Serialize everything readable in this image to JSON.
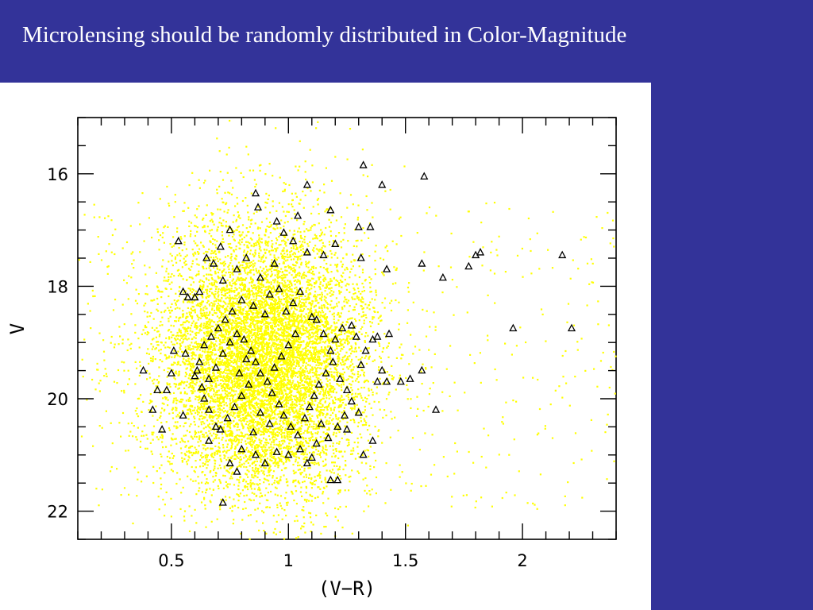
{
  "slide": {
    "title": "Microlensing should be randomly distributed in Color-Magnitude"
  },
  "colors": {
    "background": "#333399",
    "title_text": "#ffffff",
    "panel": "#ffffff",
    "field_stars": "#ffff00",
    "events": "#000000"
  },
  "chart_data": {
    "type": "scatter",
    "title": "",
    "xlabel": "(V−R)",
    "ylabel": "V",
    "xlim": [
      0.1,
      2.4
    ],
    "ylim": [
      22.5,
      15.0
    ],
    "y_inverted": true,
    "grid": false,
    "legend": "none",
    "x_ticks": [
      {
        "value": 0.5,
        "label": "0.5"
      },
      {
        "value": 1.0,
        "label": "1"
      },
      {
        "value": 1.5,
        "label": "1.5"
      },
      {
        "value": 2.0,
        "label": "2"
      }
    ],
    "y_ticks": [
      {
        "value": 16,
        "label": "16"
      },
      {
        "value": 18,
        "label": "18"
      },
      {
        "value": 20,
        "label": "20"
      },
      {
        "value": 22,
        "label": "22"
      }
    ],
    "series": [
      {
        "marker": "dot",
        "color": "#ffff00",
        "distribution": {
          "type": "gaussian",
          "count": 9000,
          "x_mean": 0.9,
          "x_std": 0.22,
          "y_mean": 19.3,
          "y_std": 1.2,
          "x_range": [
            0.1,
            2.4
          ],
          "y_range": [
            15.0,
            22.5
          ]
        },
        "extra_sparse_count": 500
      },
      {
        "marker": "triangle",
        "color": "#000000",
        "points": [
          [
            0.53,
            17.2
          ],
          [
            0.57,
            18.2
          ],
          [
            0.6,
            18.2
          ],
          [
            0.62,
            18.1
          ],
          [
            0.55,
            18.1
          ],
          [
            0.65,
            17.5
          ],
          [
            0.68,
            17.6
          ],
          [
            0.71,
            17.3
          ],
          [
            0.75,
            17.0
          ],
          [
            0.72,
            17.9
          ],
          [
            0.86,
            16.35
          ],
          [
            0.87,
            16.6
          ],
          [
            0.95,
            16.85
          ],
          [
            1.04,
            16.75
          ],
          [
            1.08,
            16.2
          ],
          [
            1.18,
            16.65
          ],
          [
            1.32,
            15.85
          ],
          [
            1.4,
            16.2
          ],
          [
            1.58,
            16.05
          ],
          [
            1.3,
            16.95
          ],
          [
            1.35,
            16.95
          ],
          [
            1.2,
            17.25
          ],
          [
            1.15,
            17.45
          ],
          [
            1.08,
            17.4
          ],
          [
            1.02,
            17.2
          ],
          [
            0.98,
            17.05
          ],
          [
            0.94,
            17.6
          ],
          [
            0.82,
            17.5
          ],
          [
            0.78,
            17.7
          ],
          [
            0.88,
            17.85
          ],
          [
            1.31,
            17.5
          ],
          [
            1.42,
            17.7
          ],
          [
            1.57,
            17.6
          ],
          [
            1.66,
            17.85
          ],
          [
            1.77,
            17.65
          ],
          [
            1.8,
            17.45
          ],
          [
            1.82,
            17.4
          ],
          [
            2.17,
            17.45
          ],
          [
            1.96,
            18.75
          ],
          [
            2.21,
            18.75
          ],
          [
            0.38,
            19.5
          ],
          [
            0.42,
            20.2
          ],
          [
            0.44,
            19.85
          ],
          [
            0.46,
            20.55
          ],
          [
            0.48,
            19.85
          ],
          [
            0.5,
            19.55
          ],
          [
            0.51,
            19.15
          ],
          [
            0.55,
            20.3
          ],
          [
            0.56,
            19.2
          ],
          [
            0.61,
            19.5
          ],
          [
            0.64,
            20.0
          ],
          [
            0.66,
            20.2
          ],
          [
            0.69,
            20.5
          ],
          [
            0.66,
            20.75
          ],
          [
            0.72,
            21.85
          ],
          [
            0.75,
            21.15
          ],
          [
            0.78,
            21.3
          ],
          [
            0.8,
            20.9
          ],
          [
            0.85,
            20.6
          ],
          [
            0.86,
            21.0
          ],
          [
            0.9,
            21.15
          ],
          [
            0.95,
            20.95
          ],
          [
            1.0,
            21.0
          ],
          [
            1.05,
            20.9
          ],
          [
            1.08,
            21.15
          ],
          [
            1.1,
            21.05
          ],
          [
            1.12,
            20.8
          ],
          [
            1.18,
            21.45
          ],
          [
            1.21,
            21.45
          ],
          [
            1.25,
            20.55
          ],
          [
            1.3,
            20.25
          ],
          [
            1.32,
            21.0
          ],
          [
            1.36,
            20.75
          ],
          [
            1.38,
            19.7
          ],
          [
            1.4,
            19.5
          ],
          [
            1.42,
            19.7
          ],
          [
            1.48,
            19.7
          ],
          [
            1.52,
            19.65
          ],
          [
            1.57,
            19.5
          ],
          [
            1.63,
            20.2
          ],
          [
            1.43,
            18.85
          ],
          [
            1.38,
            18.9
          ],
          [
            1.36,
            18.95
          ],
          [
            1.33,
            19.15
          ],
          [
            1.31,
            19.4
          ],
          [
            1.29,
            18.9
          ],
          [
            1.27,
            18.7
          ],
          [
            1.23,
            18.75
          ],
          [
            1.2,
            18.95
          ],
          [
            1.18,
            19.15
          ],
          [
            1.15,
            18.85
          ],
          [
            1.12,
            18.6
          ],
          [
            1.1,
            18.55
          ],
          [
            1.05,
            18.1
          ],
          [
            1.02,
            18.3
          ],
          [
            0.99,
            18.45
          ],
          [
            0.96,
            18.05
          ],
          [
            0.92,
            18.15
          ],
          [
            0.9,
            18.5
          ],
          [
            0.85,
            18.35
          ],
          [
            0.8,
            18.25
          ],
          [
            0.76,
            18.45
          ],
          [
            0.73,
            18.6
          ],
          [
            0.7,
            18.75
          ],
          [
            0.67,
            18.9
          ],
          [
            0.64,
            19.05
          ],
          [
            0.62,
            19.35
          ],
          [
            0.6,
            19.6
          ],
          [
            0.63,
            19.8
          ],
          [
            0.66,
            19.65
          ],
          [
            0.69,
            19.45
          ],
          [
            0.72,
            19.2
          ],
          [
            0.75,
            19.0
          ],
          [
            0.78,
            18.85
          ],
          [
            0.81,
            18.95
          ],
          [
            0.84,
            19.15
          ],
          [
            0.86,
            19.35
          ],
          [
            0.88,
            19.55
          ],
          [
            0.91,
            19.7
          ],
          [
            0.93,
            19.9
          ],
          [
            0.96,
            20.1
          ],
          [
            0.98,
            20.3
          ],
          [
            1.01,
            20.5
          ],
          [
            1.04,
            20.65
          ],
          [
            1.07,
            20.35
          ],
          [
            1.09,
            20.15
          ],
          [
            1.11,
            19.95
          ],
          [
            1.13,
            19.75
          ],
          [
            1.16,
            19.55
          ],
          [
            1.19,
            19.35
          ],
          [
            1.22,
            19.65
          ],
          [
            1.25,
            19.85
          ],
          [
            1.27,
            20.05
          ],
          [
            1.24,
            20.3
          ],
          [
            1.21,
            20.5
          ],
          [
            1.17,
            20.7
          ],
          [
            1.14,
            20.45
          ],
          [
            0.94,
            19.45
          ],
          [
            0.97,
            19.25
          ],
          [
            1.0,
            19.05
          ],
          [
            1.03,
            18.85
          ],
          [
            0.83,
            19.75
          ],
          [
            0.8,
            19.95
          ],
          [
            0.77,
            20.15
          ],
          [
            0.74,
            20.35
          ],
          [
            0.71,
            20.55
          ],
          [
            0.88,
            20.25
          ],
          [
            0.92,
            20.45
          ],
          [
            0.79,
            19.55
          ],
          [
            0.82,
            19.3
          ]
        ]
      }
    ]
  }
}
